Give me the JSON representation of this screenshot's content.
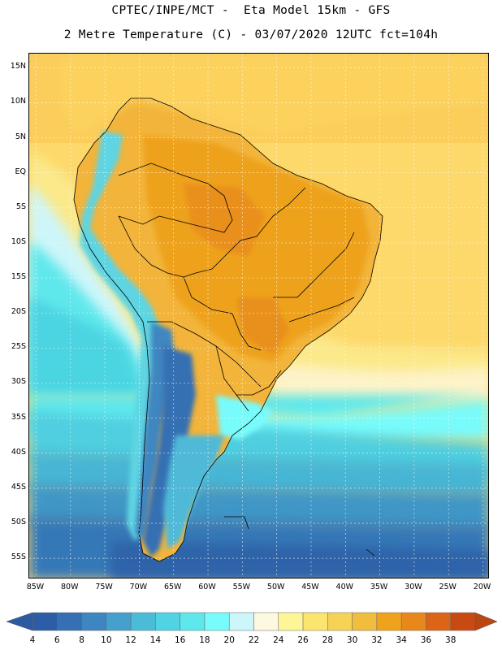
{
  "header": {
    "line1": "CPTEC/INPE/MCT -  Eta Model 15km - GFS",
    "line2": "2 Metre Temperature (C) - 03/07/2020 12UTC fct=104h"
  },
  "map": {
    "region": "South America",
    "variable": "2 Metre Temperature",
    "units": "C",
    "lat_range": [
      -58,
      17
    ],
    "lon_range": [
      -86,
      -19
    ],
    "lat_ticks": [
      "15N",
      "10N",
      "5N",
      "EQ",
      "5S",
      "10S",
      "15S",
      "20S",
      "25S",
      "30S",
      "35S",
      "40S",
      "45S",
      "50S",
      "55S"
    ],
    "lat_values": [
      15,
      10,
      5,
      0,
      -5,
      -10,
      -15,
      -20,
      -25,
      -30,
      -35,
      -40,
      -45,
      -50,
      -55
    ],
    "lon_ticks": [
      "85W",
      "80W",
      "75W",
      "70W",
      "65W",
      "60W",
      "55W",
      "50W",
      "45W",
      "40W",
      "35W",
      "30W",
      "25W",
      "20W"
    ],
    "lon_values": [
      -85,
      -80,
      -75,
      -70,
      -65,
      -60,
      -55,
      -50,
      -45,
      -40,
      -35,
      -30,
      -25,
      -20
    ]
  },
  "colorbar": {
    "labels": [
      "4",
      "6",
      "8",
      "10",
      "12",
      "14",
      "16",
      "18",
      "20",
      "22",
      "24",
      "26",
      "28",
      "30",
      "32",
      "34",
      "36",
      "38"
    ],
    "colors": [
      "#2b5ea7",
      "#3570b4",
      "#3d86c0",
      "#45a0cd",
      "#4bbcd8",
      "#50d3e2",
      "#5ee8ec",
      "#78fbfb",
      "#cdf6fa",
      "#fdf8e0",
      "#fef596",
      "#fbe56e",
      "#f6d257",
      "#f1bd3c",
      "#efa21b",
      "#e8871b",
      "#dd6416",
      "#c84a10"
    ],
    "low_color": "#2e5b9f",
    "high_color": "#bc4610"
  }
}
